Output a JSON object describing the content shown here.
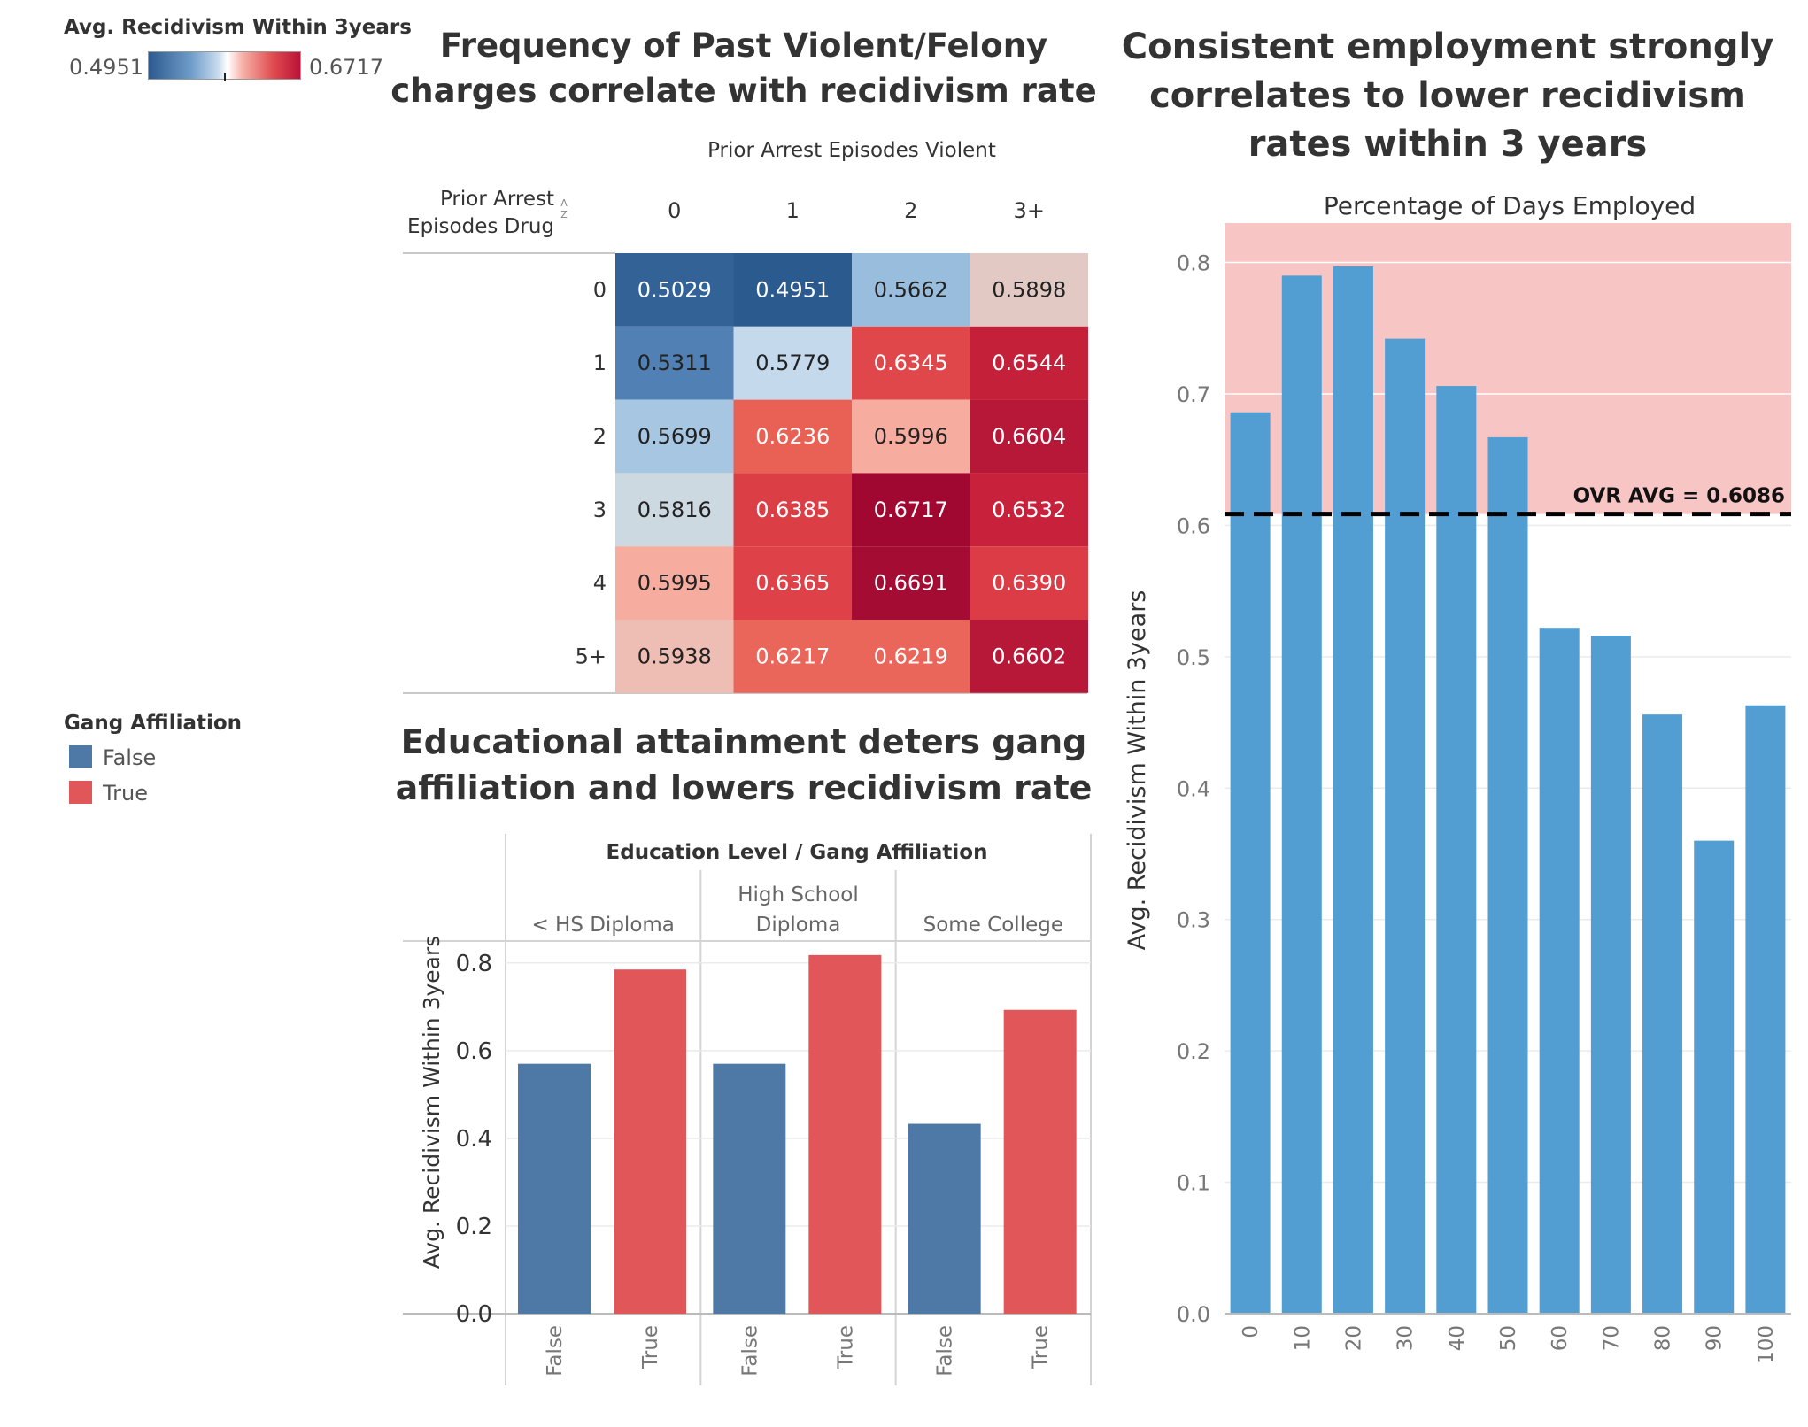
{
  "color_legend": {
    "title": "Avg. Recidivism Within 3years",
    "min_label": "0.4951",
    "max_label": "0.6717"
  },
  "gang_legend": {
    "title": "Gang Affiliation",
    "items": [
      {
        "label": "False",
        "color": "#4e79a7"
      },
      {
        "label": "True",
        "color": "#e15759"
      }
    ]
  },
  "colors": {
    "false_bar": "#4e79a7",
    "true_bar": "#e15759",
    "employment_bar": "#529ed2",
    "above_avg_band": "#f8c5c5",
    "gridline": "#ebebeb"
  },
  "chart_data": [
    {
      "type": "heatmap",
      "title": "Frequency of Past Violent/Felony charges correlate with recidivism rate",
      "column_header": "Prior Arrest Episodes Violent",
      "row_header": "Prior Arrest Episodes Drug",
      "columns": [
        "0",
        "1",
        "2",
        "3+"
      ],
      "rows": [
        "0",
        "1",
        "2",
        "3",
        "4",
        "5+"
      ],
      "values": [
        [
          0.5029,
          0.4951,
          0.5662,
          0.5898
        ],
        [
          0.5311,
          0.5779,
          0.6345,
          0.6544
        ],
        [
          0.5699,
          0.6236,
          0.5996,
          0.6604
        ],
        [
          0.5816,
          0.6385,
          0.6717,
          0.6532
        ],
        [
          0.5995,
          0.6365,
          0.6691,
          0.639
        ],
        [
          0.5938,
          0.6217,
          0.6219,
          0.6602
        ]
      ],
      "labels": [
        [
          "0.5029",
          "0.4951",
          "0.5662",
          "0.5898"
        ],
        [
          "0.5311",
          "0.5779",
          "0.6345",
          "0.6544"
        ],
        [
          "0.5699",
          "0.6236",
          "0.5996",
          "0.6604"
        ],
        [
          "0.5816",
          "0.6385",
          "0.6717",
          "0.6532"
        ],
        [
          "0.5995",
          "0.6365",
          "0.6691",
          "0.6390"
        ],
        [
          "0.5938",
          "0.6217",
          "0.6219",
          "0.6602"
        ]
      ],
      "color_range": [
        0.4951,
        0.6717
      ]
    },
    {
      "type": "bar",
      "title": "Educational attainment deters gang affiliation and lowers recidivism rate",
      "header": "Education Level  /  Gang Affiliation",
      "ylabel": "Avg. Recidivism Within 3years",
      "ylim": [
        0,
        0.85
      ],
      "yticks": [
        "0.0",
        "0.2",
        "0.4",
        "0.6",
        "0.8"
      ],
      "groups": [
        {
          "label_lines": [
            "< HS Diploma"
          ],
          "categories": [
            "False",
            "True"
          ],
          "values": [
            0.57,
            0.785
          ]
        },
        {
          "label_lines": [
            "High School",
            "Diploma"
          ],
          "categories": [
            "False",
            "True"
          ],
          "values": [
            0.57,
            0.818
          ]
        },
        {
          "label_lines": [
            "Some College"
          ],
          "categories": [
            "False",
            "True"
          ],
          "values": [
            0.433,
            0.693
          ]
        }
      ]
    },
    {
      "type": "bar",
      "title": "Consistent employment strongly correlates to lower recidivism rates within 3 years",
      "header": "Percentage of Days Employed",
      "ylabel": "Avg. Recidivism Within 3years",
      "ylim": [
        0,
        0.83
      ],
      "yticks": [
        "0.0",
        "0.1",
        "0.2",
        "0.3",
        "0.4",
        "0.5",
        "0.6",
        "0.7",
        "0.8"
      ],
      "categories": [
        "0",
        "10",
        "20",
        "30",
        "40",
        "50",
        "60",
        "70",
        "80",
        "90",
        "100"
      ],
      "values": [
        0.686,
        0.79,
        0.797,
        0.742,
        0.706,
        0.667,
        0.522,
        0.516,
        0.456,
        0.36,
        0.463
      ],
      "reference_line": {
        "value": 0.6086,
        "label": "OVR AVG = 0.6086",
        "style": "dashed"
      },
      "shaded_region": "above average"
    }
  ]
}
